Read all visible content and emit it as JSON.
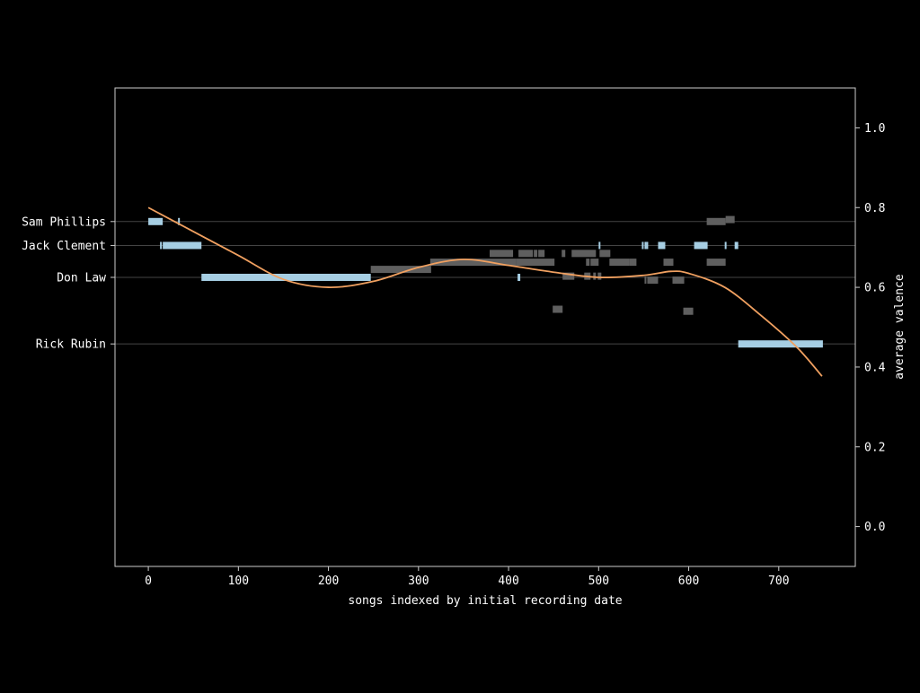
{
  "chart_data": {
    "type": "line",
    "xlabel": "songs indexed by initial recording date",
    "ylabel_right": "average valence",
    "xlim": [
      -37,
      785
    ],
    "x_ticks": [
      0,
      100,
      200,
      300,
      400,
      500,
      600,
      700
    ],
    "ylim": [
      -0.1,
      1.1
    ],
    "y_ticks": [
      0.0,
      0.2,
      0.4,
      0.6,
      0.8,
      1.0
    ],
    "grid": "horizontal lines at producer rows",
    "colors": {
      "background": "#000000",
      "axes": "#cccccc",
      "highlight_bar": "#a6cee3",
      "other_bar": "#5f5f5f",
      "smooth_line": "#f0a060",
      "row_line": "#444444"
    },
    "producers": [
      {
        "name": "Sam Phillips",
        "row_value": 0.765,
        "highlight_segments": [
          [
            0,
            16
          ],
          [
            33,
            34
          ]
        ],
        "other_segments": []
      },
      {
        "name": "Jack Clement",
        "row_value": 0.705,
        "highlight_segments": [
          [
            13,
            15
          ],
          [
            16,
            59
          ],
          [
            500,
            501
          ],
          [
            548,
            550
          ],
          [
            551,
            552
          ],
          [
            553,
            555
          ],
          [
            566,
            574
          ],
          [
            606,
            621
          ],
          [
            640,
            642
          ],
          [
            651,
            655
          ]
        ],
        "other_segments": []
      },
      {
        "name": "Don Law",
        "row_value": 0.625,
        "highlight_segments": [
          [
            59,
            247
          ],
          [
            410,
            413
          ]
        ],
        "other_segments": []
      },
      {
        "name": "Rick Rubin",
        "row_value": 0.458,
        "highlight_segments": [
          [
            655,
            749
          ]
        ],
        "other_segments": []
      }
    ],
    "other_producer_segments": [
      {
        "x": [
          620,
          641
        ],
        "y": 0.765
      },
      {
        "x": [
          641,
          651
        ],
        "y": 0.77
      },
      {
        "x": [
          379,
          405
        ],
        "y": 0.685
      },
      {
        "x": [
          411,
          427
        ],
        "y": 0.685
      },
      {
        "x": [
          428,
          432
        ],
        "y": 0.685
      },
      {
        "x": [
          433,
          440
        ],
        "y": 0.685
      },
      {
        "x": [
          459,
          463
        ],
        "y": 0.685
      },
      {
        "x": [
          470,
          497
        ],
        "y": 0.685
      },
      {
        "x": [
          501,
          513
        ],
        "y": 0.685
      },
      {
        "x": [
          247,
          314
        ],
        "y": 0.645
      },
      {
        "x": [
          313,
          408
        ],
        "y": 0.663
      },
      {
        "x": [
          408,
          451
        ],
        "y": 0.663
      },
      {
        "x": [
          486,
          490
        ],
        "y": 0.663
      },
      {
        "x": [
          491,
          500
        ],
        "y": 0.663
      },
      {
        "x": [
          512,
          534
        ],
        "y": 0.663
      },
      {
        "x": [
          534,
          542
        ],
        "y": 0.663
      },
      {
        "x": [
          572,
          583
        ],
        "y": 0.663
      },
      {
        "x": [
          620,
          641
        ],
        "y": 0.663
      },
      {
        "x": [
          460,
          473
        ],
        "y": 0.628
      },
      {
        "x": [
          484,
          491
        ],
        "y": 0.628
      },
      {
        "x": [
          494,
          497
        ],
        "y": 0.628
      },
      {
        "x": [
          499,
          503
        ],
        "y": 0.628
      },
      {
        "x": [
          551,
          553
        ],
        "y": 0.618
      },
      {
        "x": [
          554,
          566
        ],
        "y": 0.618
      },
      {
        "x": [
          582,
          595
        ],
        "y": 0.618
      },
      {
        "x": [
          449,
          460
        ],
        "y": 0.545
      },
      {
        "x": [
          594,
          605
        ],
        "y": 0.54
      }
    ],
    "smooth_line": {
      "x": [
        0,
        50,
        100,
        150,
        200,
        250,
        300,
        350,
        400,
        450,
        500,
        550,
        580,
        600,
        640,
        680,
        720,
        748
      ],
      "y": [
        0.8,
        0.74,
        0.68,
        0.62,
        0.6,
        0.615,
        0.65,
        0.67,
        0.655,
        0.638,
        0.625,
        0.63,
        0.64,
        0.635,
        0.6,
        0.53,
        0.45,
        0.377
      ]
    }
  }
}
